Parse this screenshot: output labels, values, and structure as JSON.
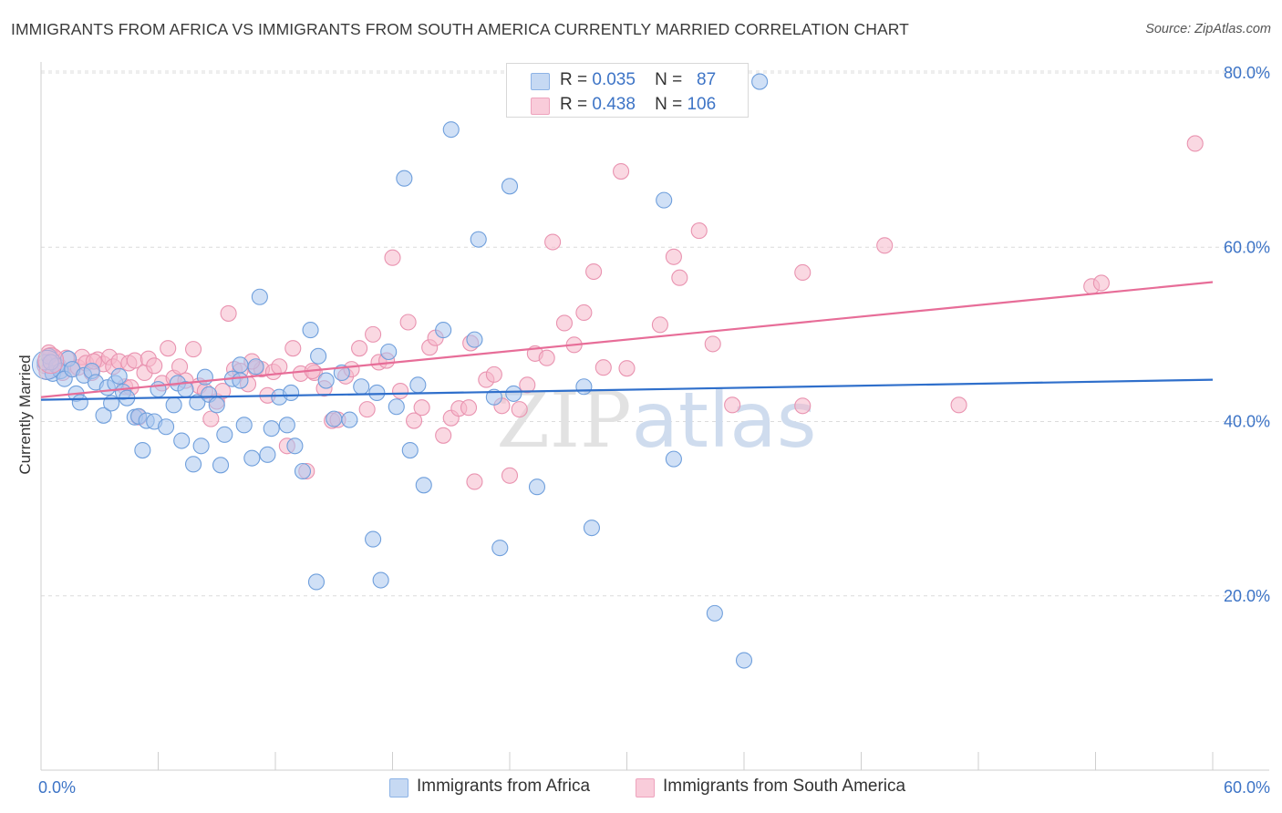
{
  "title": "IMMIGRANTS FROM AFRICA VS IMMIGRANTS FROM SOUTH AMERICA CURRENTLY MARRIED CORRELATION CHART",
  "source": "Source: ZipAtlas.com",
  "watermark": "ZIPatlas",
  "colors": {
    "blue_fill": "#a9c6ef",
    "blue_stroke": "#6f9fdc",
    "blue_line": "#2f6fcb",
    "pink_fill": "#f6b8cb",
    "pink_stroke": "#e993b0",
    "pink_line": "#e76d98",
    "axis_text": "#3d74c6",
    "grid": "#dcdcdc"
  },
  "legend": {
    "rows": [
      {
        "r_label": "R =",
        "r_value": "0.035",
        "n_label": "N =",
        "n_value": "87"
      },
      {
        "r_label": "R =",
        "r_value": "0.438",
        "n_label": "N =",
        "n_value": "106"
      }
    ]
  },
  "chart_data": {
    "type": "scatter",
    "xlabel": "",
    "ylabel": "Currently Married",
    "xlim": [
      0,
      60
    ],
    "ylim": [
      0,
      84
    ],
    "x_tick_labels": [
      "0.0%",
      "60.0%"
    ],
    "y_ticks": [
      20,
      40,
      60,
      80
    ],
    "y_tick_labels": [
      "20.0%",
      "40.0%",
      "60.0%",
      "80.0%"
    ],
    "grid": true,
    "legend_placement": "bottom",
    "series": [
      {
        "name": "Immigrants from Africa",
        "color": "#a9c6ef",
        "trend": [
          [
            0,
            42.5
          ],
          [
            60,
            44.8
          ]
        ],
        "points": [
          [
            0.2,
            46.8
          ],
          [
            0.4,
            47.5
          ],
          [
            0.6,
            45.5
          ],
          [
            0.8,
            46.4
          ],
          [
            1.0,
            45.8
          ],
          [
            1.2,
            44.9
          ],
          [
            1.4,
            47.2
          ],
          [
            1.6,
            46.0
          ],
          [
            1.8,
            43.2
          ],
          [
            2.0,
            42.2
          ],
          [
            2.2,
            45.3
          ],
          [
            2.6,
            45.8
          ],
          [
            2.8,
            44.5
          ],
          [
            3.2,
            40.7
          ],
          [
            3.4,
            43.9
          ],
          [
            3.6,
            42.1
          ],
          [
            3.8,
            44.4
          ],
          [
            4.0,
            45.2
          ],
          [
            4.2,
            43.4
          ],
          [
            4.4,
            42.7
          ],
          [
            4.8,
            40.5
          ],
          [
            5.0,
            40.6
          ],
          [
            5.2,
            36.7
          ],
          [
            5.4,
            40.1
          ],
          [
            5.8,
            40.0
          ],
          [
            6.0,
            43.7
          ],
          [
            6.4,
            39.4
          ],
          [
            6.8,
            41.9
          ],
          [
            7.0,
            44.4
          ],
          [
            7.2,
            37.8
          ],
          [
            7.4,
            43.7
          ],
          [
            7.8,
            35.1
          ],
          [
            8.0,
            42.2
          ],
          [
            8.2,
            37.2
          ],
          [
            8.4,
            45.1
          ],
          [
            8.6,
            43.1
          ],
          [
            9.0,
            41.9
          ],
          [
            9.2,
            35.0
          ],
          [
            9.4,
            38.5
          ],
          [
            9.8,
            44.9
          ],
          [
            10.2,
            46.5
          ],
          [
            10.4,
            39.6
          ],
          [
            10.8,
            35.8
          ],
          [
            11.0,
            46.3
          ],
          [
            11.2,
            54.3
          ],
          [
            11.6,
            36.2
          ],
          [
            11.8,
            39.2
          ],
          [
            12.2,
            42.8
          ],
          [
            12.6,
            39.6
          ],
          [
            12.8,
            43.3
          ],
          [
            13.0,
            37.2
          ],
          [
            13.4,
            34.3
          ],
          [
            13.8,
            50.5
          ],
          [
            14.2,
            47.5
          ],
          [
            14.6,
            44.7
          ],
          [
            15.0,
            40.3
          ],
          [
            15.4,
            45.6
          ],
          [
            15.8,
            40.2
          ],
          [
            16.4,
            44.0
          ],
          [
            17.2,
            43.3
          ],
          [
            17.8,
            48.0
          ],
          [
            18.2,
            41.7
          ],
          [
            18.6,
            67.9
          ],
          [
            18.9,
            36.7
          ],
          [
            19.3,
            44.2
          ],
          [
            19.6,
            32.7
          ],
          [
            20.6,
            50.5
          ],
          [
            21.0,
            73.5
          ],
          [
            22.2,
            49.4
          ],
          [
            22.4,
            60.9
          ],
          [
            23.2,
            42.8
          ],
          [
            23.5,
            25.5
          ],
          [
            24.0,
            67.0
          ],
          [
            24.2,
            43.2
          ],
          [
            25.4,
            32.5
          ],
          [
            27.8,
            44.0
          ],
          [
            31.9,
            65.4
          ],
          [
            32.4,
            35.7
          ],
          [
            34.5,
            18.0
          ],
          [
            36.0,
            12.6
          ],
          [
            28.2,
            27.8
          ],
          [
            17.0,
            26.5
          ],
          [
            14.1,
            21.6
          ],
          [
            17.4,
            21.8
          ],
          [
            36.8,
            79.0
          ],
          [
            10.2,
            44.7
          ],
          [
            0.5,
            46.8
          ]
        ]
      },
      {
        "name": "Immigrants from South America",
        "color": "#f6b8cb",
        "trend": [
          [
            0,
            42.8
          ],
          [
            60,
            56.0
          ]
        ],
        "points": [
          [
            0.2,
            46.4
          ],
          [
            0.3,
            45.7
          ],
          [
            0.5,
            47.6
          ],
          [
            0.7,
            47.3
          ],
          [
            0.9,
            46.4
          ],
          [
            1.1,
            45.6
          ],
          [
            1.3,
            47.3
          ],
          [
            1.6,
            46.0
          ],
          [
            1.9,
            46.2
          ],
          [
            2.1,
            47.4
          ],
          [
            2.3,
            46.7
          ],
          [
            2.6,
            45.6
          ],
          [
            2.9,
            47.1
          ],
          [
            3.2,
            46.6
          ],
          [
            3.5,
            47.4
          ],
          [
            3.7,
            46.3
          ],
          [
            4.0,
            46.9
          ],
          [
            4.3,
            44.0
          ],
          [
            4.5,
            46.7
          ],
          [
            4.8,
            47.0
          ],
          [
            5.0,
            40.5
          ],
          [
            5.3,
            45.6
          ],
          [
            5.5,
            47.2
          ],
          [
            5.8,
            46.4
          ],
          [
            6.2,
            44.4
          ],
          [
            6.5,
            48.4
          ],
          [
            6.8,
            45.0
          ],
          [
            7.1,
            46.3
          ],
          [
            7.4,
            44.7
          ],
          [
            7.8,
            48.3
          ],
          [
            8.1,
            44.1
          ],
          [
            8.4,
            43.5
          ],
          [
            8.7,
            40.3
          ],
          [
            9.0,
            42.3
          ],
          [
            9.3,
            43.5
          ],
          [
            9.6,
            52.4
          ],
          [
            9.9,
            46.0
          ],
          [
            10.2,
            45.8
          ],
          [
            10.6,
            44.3
          ],
          [
            11.0,
            46.1
          ],
          [
            11.3,
            46.0
          ],
          [
            11.6,
            43.0
          ],
          [
            11.9,
            45.7
          ],
          [
            12.2,
            46.3
          ],
          [
            12.6,
            37.2
          ],
          [
            12.9,
            48.4
          ],
          [
            13.3,
            45.5
          ],
          [
            13.6,
            34.3
          ],
          [
            14.0,
            45.6
          ],
          [
            14.5,
            43.8
          ],
          [
            14.9,
            40.1
          ],
          [
            15.2,
            40.2
          ],
          [
            15.6,
            45.2
          ],
          [
            15.9,
            46.0
          ],
          [
            16.3,
            48.4
          ],
          [
            16.7,
            41.4
          ],
          [
            17.0,
            50.0
          ],
          [
            17.3,
            46.8
          ],
          [
            17.7,
            47.0
          ],
          [
            18.0,
            58.8
          ],
          [
            18.4,
            43.5
          ],
          [
            18.8,
            51.4
          ],
          [
            19.1,
            40.1
          ],
          [
            19.5,
            41.6
          ],
          [
            19.9,
            48.5
          ],
          [
            20.2,
            49.6
          ],
          [
            20.6,
            38.4
          ],
          [
            21.0,
            40.4
          ],
          [
            21.4,
            41.5
          ],
          [
            21.9,
            41.6
          ],
          [
            22.2,
            33.1
          ],
          [
            22.8,
            44.8
          ],
          [
            23.2,
            45.4
          ],
          [
            23.6,
            41.8
          ],
          [
            24.0,
            33.8
          ],
          [
            24.5,
            41.4
          ],
          [
            24.9,
            44.2
          ],
          [
            25.3,
            47.8
          ],
          [
            25.9,
            47.3
          ],
          [
            26.2,
            60.6
          ],
          [
            26.8,
            51.3
          ],
          [
            27.3,
            48.8
          ],
          [
            27.8,
            52.5
          ],
          [
            28.3,
            57.2
          ],
          [
            28.8,
            46.2
          ],
          [
            29.7,
            68.7
          ],
          [
            31.7,
            51.1
          ],
          [
            32.4,
            58.9
          ],
          [
            32.7,
            56.5
          ],
          [
            33.7,
            61.9
          ],
          [
            34.4,
            48.9
          ],
          [
            35.4,
            41.9
          ],
          [
            39.0,
            57.1
          ],
          [
            39.0,
            41.8
          ],
          [
            43.2,
            60.2
          ],
          [
            47.0,
            41.9
          ],
          [
            53.8,
            55.5
          ],
          [
            54.3,
            55.9
          ],
          [
            59.1,
            71.9
          ],
          [
            22.0,
            49.0
          ],
          [
            10.8,
            46.9
          ],
          [
            13.9,
            45.8
          ],
          [
            4.6,
            43.9
          ],
          [
            2.7,
            46.9
          ],
          [
            0.4,
            47.9
          ],
          [
            30.0,
            46.1
          ]
        ]
      }
    ]
  }
}
